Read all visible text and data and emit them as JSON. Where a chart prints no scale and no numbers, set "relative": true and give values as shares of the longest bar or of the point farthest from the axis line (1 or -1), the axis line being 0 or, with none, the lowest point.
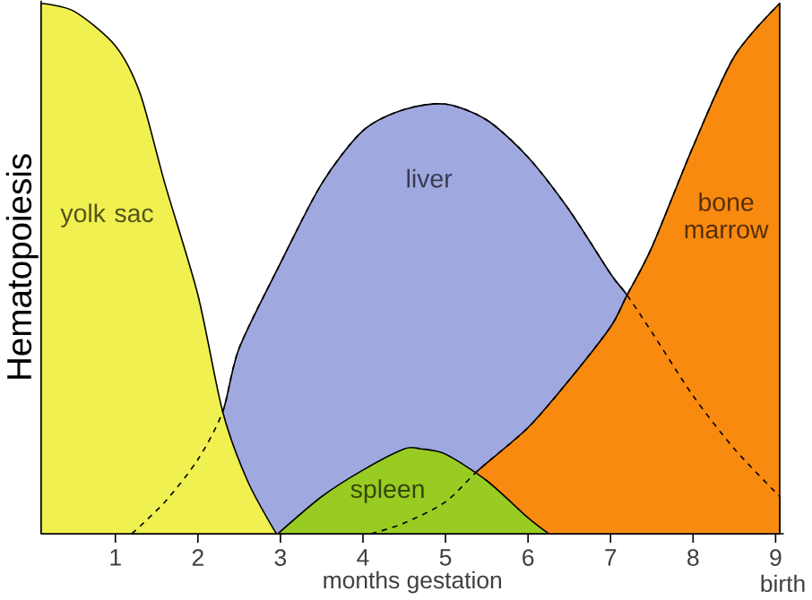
{
  "chart_data": {
    "type": "area",
    "relative": true,
    "xlabel": "months gestation",
    "ylabel": "Hematopoiesis",
    "xlim": [
      0.1,
      9.1
    ],
    "xticks": [
      1,
      2,
      3,
      4,
      5,
      6,
      7,
      8,
      9
    ],
    "annotations": [
      "birth"
    ],
    "grid": false,
    "marker": "none",
    "series": [
      {
        "name": "yolk sac",
        "color": "#f0f050",
        "x": [
          0.1,
          0.5,
          1,
          1.3,
          1.6,
          2,
          2.3,
          2.6,
          2.95
        ],
        "values": [
          1,
          0.985,
          0.92,
          0.83,
          0.66,
          0.45,
          0.23,
          0.1,
          0
        ]
      },
      {
        "name": "liver",
        "color": "#a0a8e0",
        "x": [
          1.2,
          1.6,
          2,
          2.3,
          2.5,
          3,
          3.5,
          4,
          4.5,
          5,
          5.5,
          6,
          6.5,
          7,
          7.2,
          7.5,
          8,
          8.5,
          9.05
        ],
        "values": [
          0,
          0.06,
          0.14,
          0.23,
          0.35,
          0.51,
          0.66,
          0.76,
          0.8,
          0.81,
          0.78,
          0.71,
          0.61,
          0.49,
          0.45,
          0.38,
          0.26,
          0.16,
          0.07
        ]
      },
      {
        "name": "spleen",
        "color": "#99cc22",
        "x": [
          2.97,
          3.5,
          4,
          4.5,
          4.7,
          5,
          5.5,
          6,
          6.25
        ],
        "values": [
          0,
          0.07,
          0.12,
          0.16,
          0.16,
          0.15,
          0.1,
          0.03,
          0
        ]
      },
      {
        "name": "bone marrow",
        "color": "#f98a10",
        "x": [
          4.1,
          4.5,
          5,
          5.4,
          6,
          6.5,
          7,
          7.2,
          7.5,
          8,
          8.5,
          9.05
        ],
        "values": [
          0,
          0.02,
          0.06,
          0.12,
          0.2,
          0.29,
          0.39,
          0.45,
          0.54,
          0.73,
          0.9,
          1
        ]
      }
    ]
  }
}
